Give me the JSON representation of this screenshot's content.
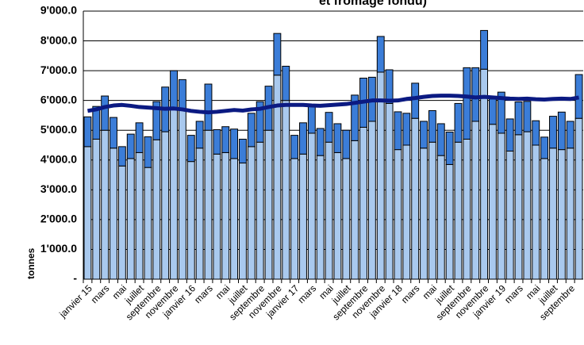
{
  "chart_data": {
    "type": "bar",
    "title": "et fromage fondu)",
    "y_label": "tonnes",
    "stacked": true,
    "grid": true,
    "categories": [
      "janvier 15",
      null,
      "mars",
      null,
      "mai",
      null,
      "juillet",
      null,
      "septembre",
      null,
      "novembre",
      null,
      "janvier 16",
      null,
      "mars",
      null,
      "mai",
      null,
      "juillet",
      null,
      "septembre",
      null,
      "novembre",
      null,
      "janvier 17",
      null,
      "mars",
      null,
      "mai",
      null,
      "juillet",
      null,
      "septembre",
      null,
      "novembre",
      null,
      "janvier 18",
      null,
      "mars",
      null,
      "mai",
      null,
      "juillet",
      null,
      "septembre",
      null,
      "novembre",
      null,
      "janvier 19",
      null,
      "mars",
      null,
      "mai",
      null,
      "juillet",
      null,
      "septembre",
      null
    ],
    "series": [
      {
        "color": "#a9c9ee",
        "values": [
          4450,
          4700,
          5000,
          4400,
          3800,
          4050,
          4250,
          3750,
          4680,
          4950,
          5700,
          5700,
          3950,
          4400,
          5000,
          4200,
          4250,
          4050,
          3900,
          4450,
          4600,
          5000,
          6850,
          6000,
          4050,
          4200,
          4900,
          4150,
          4600,
          4250,
          4050,
          4650,
          5100,
          5300,
          6950,
          5900,
          4350,
          4500,
          5400,
          4400,
          4600,
          4150,
          3850,
          4600,
          4700,
          5300,
          7050,
          5200,
          4900,
          4300,
          4850,
          4950,
          4500,
          4050,
          4400,
          4350,
          4400,
          5400
        ]
      },
      {
        "color": "#3b7dd8",
        "values": [
          1000,
          1100,
          1150,
          1030,
          650,
          820,
          1000,
          1030,
          1280,
          1500,
          1300,
          1000,
          880,
          900,
          1550,
          820,
          870,
          990,
          800,
          1120,
          1360,
          1480,
          1400,
          1150,
          780,
          1050,
          900,
          910,
          1000,
          970,
          950,
          1530,
          1650,
          1480,
          1200,
          1130,
          1270,
          1070,
          1180,
          900,
          1060,
          1070,
          1090,
          1300,
          2400,
          1800,
          1300,
          850,
          1380,
          1080,
          1100,
          1020,
          820,
          720,
          1070,
          1260,
          900,
          1470
        ]
      },
      {
        "type": "line",
        "color": "#0b1a82",
        "values": [
          5650,
          5700,
          5780,
          5830,
          5850,
          5820,
          5780,
          5760,
          5740,
          5720,
          5730,
          5700,
          5650,
          5620,
          5600,
          5620,
          5650,
          5680,
          5660,
          5700,
          5720,
          5780,
          5830,
          5850,
          5850,
          5850,
          5830,
          5820,
          5840,
          5860,
          5880,
          5920,
          5960,
          6000,
          6000,
          5990,
          6000,
          6050,
          6080,
          6120,
          6150,
          6160,
          6160,
          6150,
          6130,
          6100,
          6120,
          6100,
          6080,
          6060,
          6050,
          6060,
          6040,
          6030,
          6050,
          6060,
          6050,
          6100
        ]
      }
    ],
    "ylim": [
      0,
      9000
    ],
    "yticks": [
      {
        "value": 0,
        "label": "-"
      },
      {
        "value": 1000,
        "label": "1'000.0"
      },
      {
        "value": 2000,
        "label": "2'000.0"
      },
      {
        "value": 3000,
        "label": "3'000.0"
      },
      {
        "value": 4000,
        "label": "4'000.0"
      },
      {
        "value": 5000,
        "label": "5'000.0"
      },
      {
        "value": 6000,
        "label": "6'000.0"
      },
      {
        "value": 7000,
        "label": "7'000.0"
      },
      {
        "value": 8000,
        "label": "8'000.0"
      },
      {
        "value": 9000,
        "label": "9'000.0"
      }
    ]
  }
}
